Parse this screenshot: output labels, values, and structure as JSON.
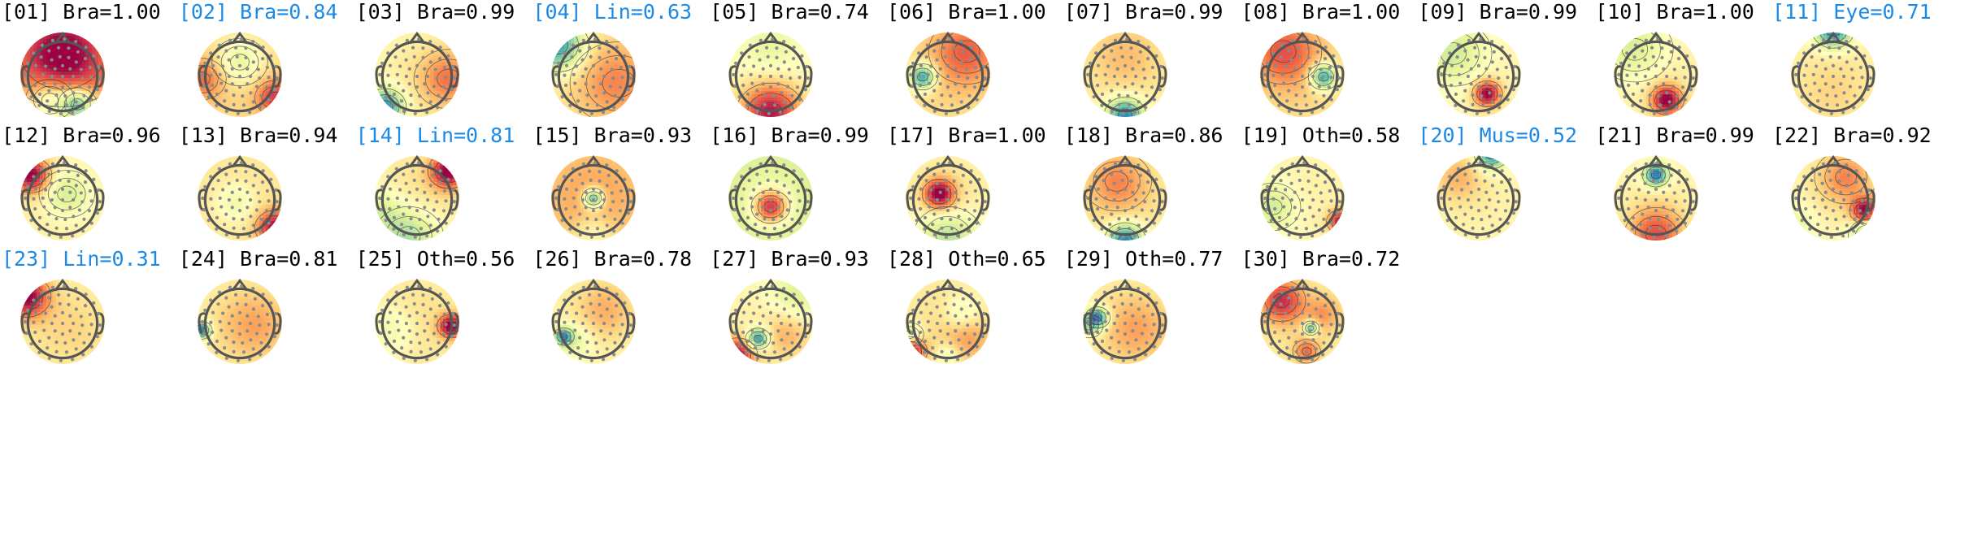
{
  "colors": {
    "kept_label": "#000000",
    "rejected_label": "#1a8ae6",
    "head_outline": "#555555",
    "electrode": "#8a8a8a",
    "contour": "#333333"
  },
  "colormap": [
    "#5e4fa2",
    "#3288bd",
    "#66c2a5",
    "#abdda4",
    "#e6f598",
    "#ffffbf",
    "#fee08b",
    "#fdae61",
    "#f46d43",
    "#d53e4f",
    "#9e0142"
  ],
  "components": [
    {
      "label": "[01] Bra=1.00",
      "status": "kept",
      "blobs": [
        [
          0,
          -0.5,
          0.9,
          0.9
        ],
        [
          -0.3,
          0.6,
          -0.55,
          0.35
        ],
        [
          0.35,
          0.7,
          -0.9,
          0.28
        ],
        [
          0,
          0,
          0.2,
          1.2
        ]
      ]
    },
    {
      "label": "[02] Bra=0.84",
      "status": "rejected",
      "blobs": [
        [
          0,
          -0.3,
          -0.45,
          0.4
        ],
        [
          0.85,
          0.55,
          0.6,
          0.3
        ],
        [
          -0.9,
          0.1,
          0.4,
          0.35
        ],
        [
          0,
          0,
          0.3,
          1.2
        ]
      ]
    },
    {
      "label": "[03] Bra=0.99",
      "status": "kept",
      "blobs": [
        [
          -0.75,
          0.75,
          -0.85,
          0.3
        ],
        [
          0.75,
          0.1,
          0.5,
          0.5
        ],
        [
          0,
          0,
          0.1,
          1.0
        ]
      ]
    },
    {
      "label": "[04] Lin=0.63",
      "status": "rejected",
      "blobs": [
        [
          -0.85,
          -0.7,
          -0.9,
          0.45
        ],
        [
          0.6,
          0.2,
          0.35,
          0.7
        ],
        [
          0,
          0,
          0.2,
          1.2
        ]
      ]
    },
    {
      "label": "[05] Bra=0.74",
      "status": "kept",
      "blobs": [
        [
          0,
          0.9,
          0.9,
          0.5
        ],
        [
          0,
          -0.6,
          -0.2,
          0.5
        ],
        [
          0,
          0,
          0.05,
          1
        ]
      ]
    },
    {
      "label": "[06] Bra=1.00",
      "status": "kept",
      "blobs": [
        [
          -0.6,
          0.05,
          -0.95,
          0.22
        ],
        [
          0.45,
          -0.55,
          0.45,
          0.55
        ],
        [
          0,
          0,
          0.25,
          1.3
        ]
      ]
    },
    {
      "label": "[07] Bra=0.99",
      "status": "kept",
      "blobs": [
        [
          0,
          0.95,
          -0.9,
          0.3
        ],
        [
          0,
          -0.5,
          0.25,
          0.7
        ],
        [
          0,
          0,
          0.1,
          1
        ]
      ]
    },
    {
      "label": "[08] Bra=1.00",
      "status": "kept",
      "blobs": [
        [
          0.5,
          0.05,
          -0.95,
          0.22
        ],
        [
          -0.45,
          -0.55,
          0.5,
          0.55
        ],
        [
          0,
          0,
          0.25,
          1.3
        ]
      ]
    },
    {
      "label": "[09] Bra=0.99",
      "status": "kept",
      "blobs": [
        [
          0.2,
          0.45,
          0.95,
          0.22
        ],
        [
          -0.6,
          -0.5,
          -0.35,
          0.55
        ],
        [
          0,
          0,
          0.1,
          1
        ]
      ]
    },
    {
      "label": "[10] Bra=1.00",
      "status": "kept",
      "blobs": [
        [
          0.25,
          0.6,
          0.95,
          0.25
        ],
        [
          -0.5,
          -0.6,
          -0.35,
          0.55
        ],
        [
          0,
          0,
          0.15,
          1
        ]
      ]
    },
    {
      "label": "[11] Eye=0.71",
      "status": "rejected",
      "blobs": [
        [
          0,
          -1.05,
          -0.9,
          0.3
        ],
        [
          0,
          0.5,
          0.15,
          0.7
        ],
        [
          0,
          0,
          0.1,
          1
        ]
      ]
    },
    {
      "label": "[12] Bra=0.96",
      "status": "kept",
      "blobs": [
        [
          -0.75,
          -0.55,
          0.95,
          0.3
        ],
        [
          0.1,
          -0.1,
          -0.4,
          0.4
        ],
        [
          0,
          0,
          0.15,
          1
        ]
      ]
    },
    {
      "label": "[13] Bra=0.94",
      "status": "kept",
      "blobs": [
        [
          0.85,
          0.7,
          0.85,
          0.3
        ],
        [
          -0.1,
          0.1,
          -0.3,
          0.35
        ],
        [
          0,
          0,
          0.2,
          1.2
        ]
      ]
    },
    {
      "label": "[14] Lin=0.81",
      "status": "rejected",
      "blobs": [
        [
          0.75,
          -0.65,
          0.95,
          0.3
        ],
        [
          -0.2,
          0.9,
          -0.5,
          0.5
        ],
        [
          -0.9,
          0.3,
          -0.3,
          0.4
        ],
        [
          0,
          0,
          0.2,
          1
        ]
      ]
    },
    {
      "label": "[15] Bra=0.93",
      "status": "kept",
      "blobs": [
        [
          0,
          0,
          -0.95,
          0.17
        ],
        [
          0,
          0,
          0.45,
          1.2
        ],
        [
          0,
          0.85,
          -0.3,
          0.35
        ]
      ]
    },
    {
      "label": "[16] Bra=0.99",
      "status": "kept",
      "blobs": [
        [
          0,
          0.2,
          0.95,
          0.28
        ],
        [
          0,
          0,
          -0.45,
          1.3
        ],
        [
          0,
          0,
          0.3,
          0.7
        ]
      ]
    },
    {
      "label": "[17] Bra=1.00",
      "status": "kept",
      "blobs": [
        [
          -0.2,
          -0.1,
          0.95,
          0.25
        ],
        [
          0,
          0.9,
          -0.45,
          0.5
        ],
        [
          0,
          0,
          0.2,
          0.8
        ]
      ]
    },
    {
      "label": "[18] Bra=0.86",
      "status": "kept",
      "blobs": [
        [
          0,
          1.0,
          -0.95,
          0.3
        ],
        [
          -0.2,
          -0.4,
          0.35,
          0.5
        ],
        [
          0,
          0,
          0.2,
          1
        ]
      ]
    },
    {
      "label": "[19] Oth=0.58",
      "status": "kept",
      "blobs": [
        [
          0.9,
          0.55,
          0.85,
          0.2
        ],
        [
          -0.7,
          0.2,
          -0.35,
          0.4
        ],
        [
          0,
          0,
          0.1,
          1
        ]
      ]
    },
    {
      "label": "[20] Mus=0.52",
      "status": "rejected",
      "blobs": [
        [
          0.3,
          -1.05,
          -0.9,
          0.25
        ],
        [
          -0.5,
          -0.5,
          0.3,
          0.4
        ],
        [
          0,
          0,
          0.1,
          1
        ]
      ]
    },
    {
      "label": "[21] Bra=0.99",
      "status": "kept",
      "blobs": [
        [
          0,
          -0.55,
          -0.95,
          0.2
        ],
        [
          0,
          0.85,
          0.65,
          0.45
        ],
        [
          0,
          0,
          0.1,
          1
        ]
      ]
    },
    {
      "label": "[22] Bra=0.92",
      "status": "kept",
      "blobs": [
        [
          0.75,
          0.3,
          0.95,
          0.22
        ],
        [
          0.85,
          0.9,
          -0.55,
          0.3
        ],
        [
          0.3,
          -0.5,
          0.45,
          0.45
        ],
        [
          -0.9,
          0.6,
          -0.2,
          0.35
        ],
        [
          0,
          0,
          0.1,
          1
        ]
      ]
    },
    {
      "label": "[23] Lin=0.31",
      "status": "rejected",
      "blobs": [
        [
          -0.85,
          -0.6,
          0.95,
          0.35
        ],
        [
          0.3,
          0.3,
          0.1,
          0.7
        ],
        [
          0,
          0,
          0.15,
          1
        ]
      ]
    },
    {
      "label": "[24] Bra=0.81",
      "status": "kept",
      "blobs": [
        [
          -0.9,
          0.2,
          -0.95,
          0.15
        ],
        [
          0.4,
          0.1,
          0.3,
          0.6
        ],
        [
          0,
          0,
          0.15,
          1
        ]
      ]
    },
    {
      "label": "[25] Oth=0.56",
      "status": "kept",
      "blobs": [
        [
          0.8,
          0.1,
          0.95,
          0.2
        ],
        [
          -0.6,
          0.2,
          -0.25,
          0.4
        ],
        [
          0,
          0,
          0.2,
          1
        ]
      ]
    },
    {
      "label": "[26] Bra=0.78",
      "status": "kept",
      "blobs": [
        [
          -0.7,
          0.35,
          -0.8,
          0.15
        ],
        [
          -0.4,
          0.45,
          -0.25,
          0.3
        ],
        [
          0.3,
          -0.3,
          0.3,
          0.5
        ],
        [
          0,
          0,
          0.1,
          1
        ]
      ]
    },
    {
      "label": "[27] Bra=0.93",
      "status": "kept",
      "blobs": [
        [
          -0.3,
          0.4,
          -0.95,
          0.18
        ],
        [
          -0.8,
          0.8,
          0.9,
          0.3
        ],
        [
          0.6,
          -0.6,
          -0.3,
          0.45
        ],
        [
          0.4,
          0.3,
          0.3,
          0.4
        ],
        [
          0,
          0,
          0.1,
          1
        ]
      ]
    },
    {
      "label": "[28] Oth=0.65",
      "status": "kept",
      "blobs": [
        [
          -0.9,
          0.7,
          0.9,
          0.25
        ],
        [
          -0.9,
          0.3,
          -0.5,
          0.2
        ],
        [
          0,
          0.8,
          -0.3,
          0.2
        ],
        [
          0.35,
          -0.2,
          -0.3,
          0.3
        ],
        [
          0.5,
          0.4,
          0.3,
          0.4
        ],
        [
          0,
          0,
          0.2,
          1
        ]
      ]
    },
    {
      "label": "[29] Oth=0.77",
      "status": "kept",
      "blobs": [
        [
          -0.65,
          -0.1,
          -0.95,
          0.18
        ],
        [
          -0.85,
          0.1,
          -0.4,
          0.2
        ],
        [
          0.3,
          0.2,
          0.3,
          0.6
        ],
        [
          0,
          0,
          0.15,
          1
        ]
      ]
    },
    {
      "label": "[30] Bra=0.72",
      "status": "kept",
      "blobs": [
        [
          0.2,
          0.15,
          -0.85,
          0.12
        ],
        [
          -0.5,
          -0.5,
          0.7,
          0.35
        ],
        [
          0.1,
          0.7,
          0.45,
          0.2
        ],
        [
          0.5,
          -0.2,
          0.3,
          0.3
        ],
        [
          0,
          0,
          0.2,
          1
        ]
      ]
    }
  ]
}
